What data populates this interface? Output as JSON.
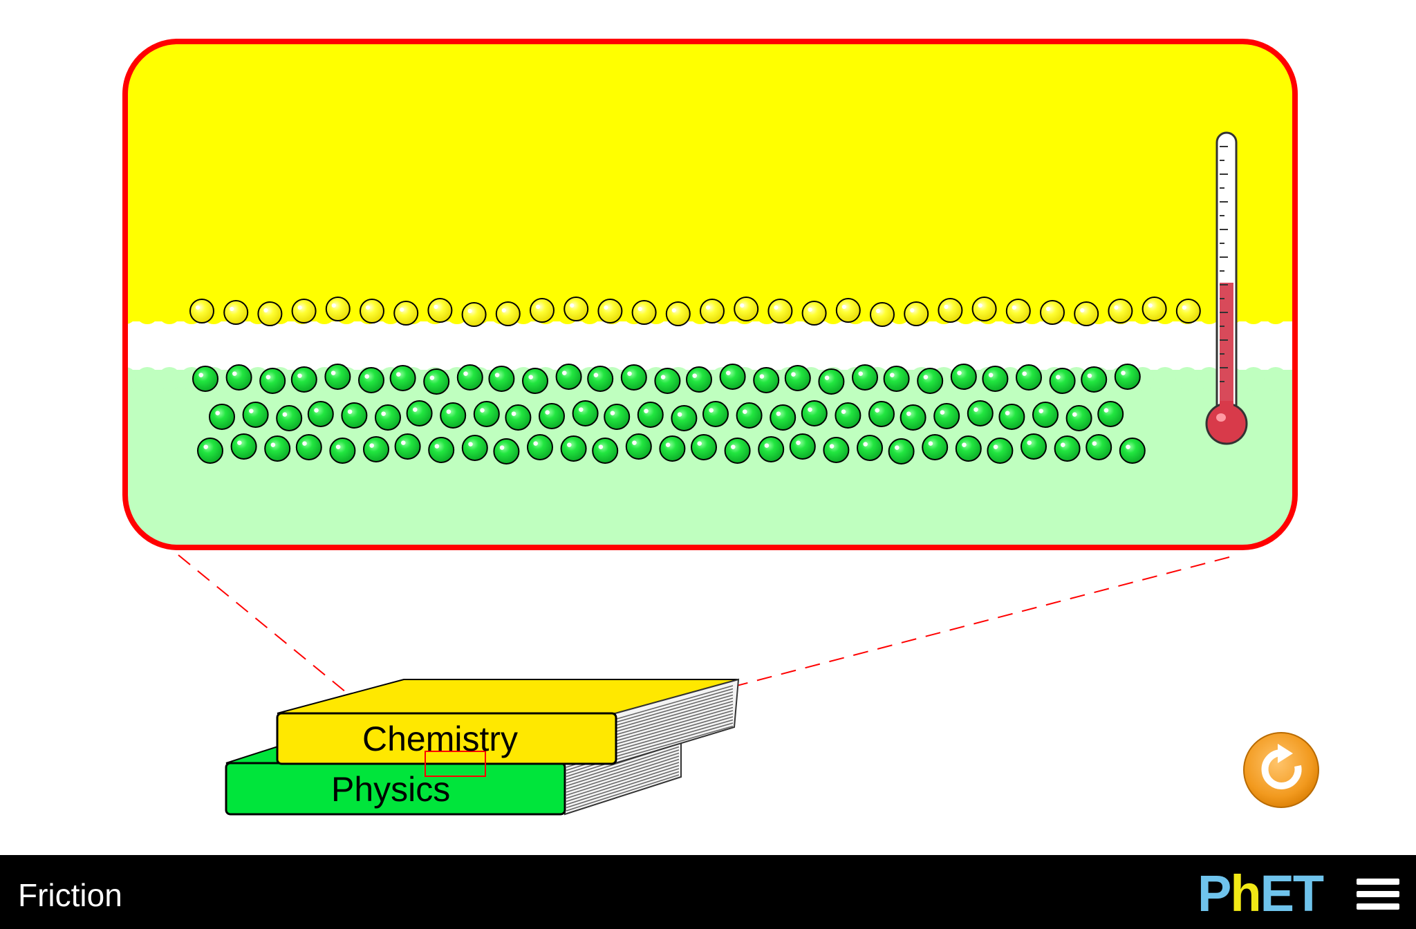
{
  "sim": {
    "title": "Friction"
  },
  "books": {
    "top": {
      "label": "Chemistry",
      "color": "#ffe800"
    },
    "bottom": {
      "label": "Physics",
      "color": "#00e53b"
    }
  },
  "magnifier": {
    "border_color": "#ff0000",
    "top_material_color": "#ffff00",
    "bottom_material_color": "#bfffbf",
    "top_atom_color": "#ffff2a",
    "bottom_atom_color": "#17e23a"
  },
  "thermometer": {
    "level": 0.5,
    "fluid_color": "#d84a5a"
  },
  "controls": {
    "reset_all_icon": "reset-all-icon"
  },
  "branding": {
    "logo": "PhET",
    "menu_icon": "hamburger-menu-icon"
  }
}
